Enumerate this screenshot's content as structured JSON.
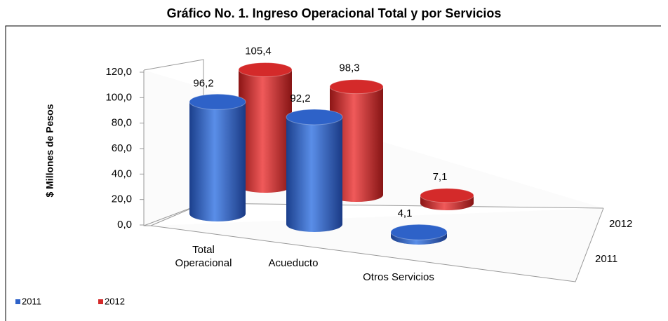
{
  "chart_data": {
    "type": "bar3d",
    "title": "Gráfico No. 1. Ingreso Operacional Total y por Servicios",
    "y_label": "$ Millones de Pesos",
    "categories": [
      "Total Operacional",
      "Acueducto",
      "Otros Servicios"
    ],
    "series": [
      {
        "name": "2011",
        "color": "#2e62c8",
        "values": [
          96.2,
          92.2,
          4.1
        ],
        "value_labels": [
          "96,2",
          "92,2",
          "4,1"
        ]
      },
      {
        "name": "2012",
        "color": "#d42a2a",
        "values": [
          105.4,
          98.3,
          7.1
        ],
        "value_labels": [
          "105,4",
          "98,3",
          "7,1"
        ]
      }
    ],
    "ylim": [
      0,
      120
    ],
    "yticks": [
      {
        "value": 0,
        "label": "0,0"
      },
      {
        "value": 20,
        "label": "20,0"
      },
      {
        "value": 40,
        "label": "40,0"
      },
      {
        "value": 60,
        "label": "60,0"
      },
      {
        "value": 80,
        "label": "80,0"
      },
      {
        "value": 100,
        "label": "100,0"
      },
      {
        "value": 120,
        "label": "120,0"
      }
    ],
    "legend": "bottom-left"
  }
}
